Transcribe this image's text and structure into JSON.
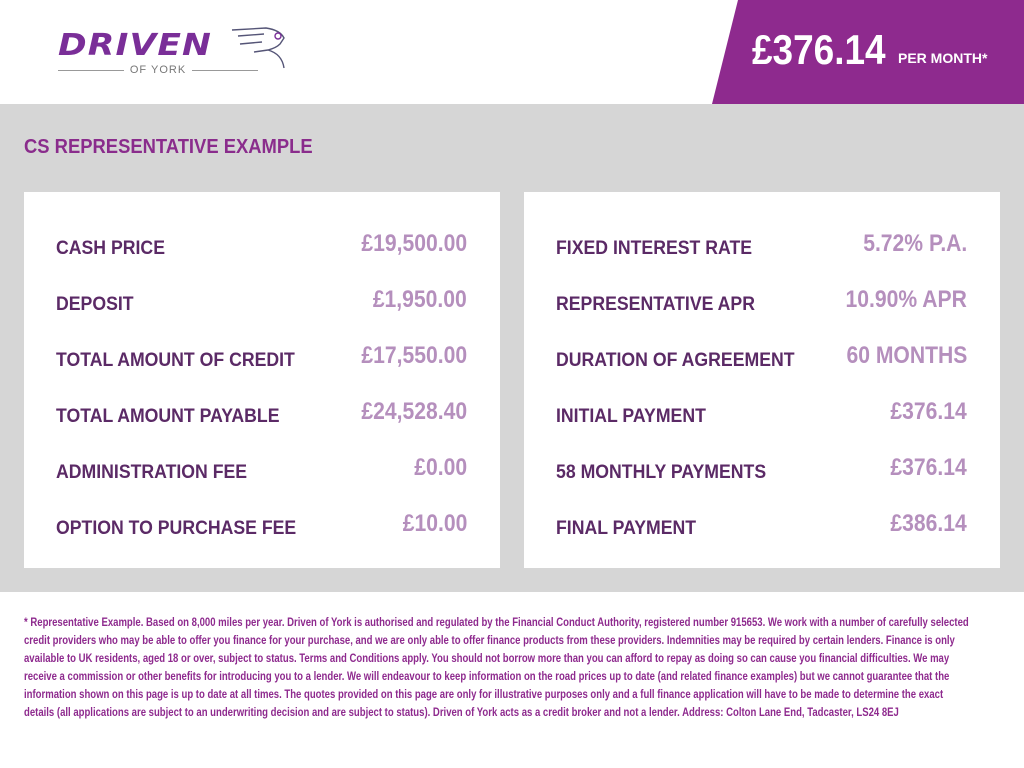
{
  "brand": {
    "logo_word": "DRIVEN",
    "logo_sub": "OF YORK",
    "accent": "#8e2a8e"
  },
  "header": {
    "price": "£376.14",
    "price_unit": "PER MONTH*"
  },
  "section": {
    "title": "CS REPRESENTATIVE EXAMPLE"
  },
  "left_card": [
    {
      "label": "CASH PRICE",
      "value": "£19,500.00"
    },
    {
      "label": "DEPOSIT",
      "value": "£1,950.00"
    },
    {
      "label": "TOTAL AMOUNT OF CREDIT",
      "value": "£17,550.00"
    },
    {
      "label": "TOTAL AMOUNT PAYABLE",
      "value": "£24,528.40"
    },
    {
      "label": "ADMINISTRATION FEE",
      "value": "£0.00"
    },
    {
      "label": "OPTION TO PURCHASE FEE",
      "value": "£10.00"
    }
  ],
  "right_card": [
    {
      "label": "FIXED INTEREST RATE",
      "value": "5.72% P.A."
    },
    {
      "label": "REPRESENTATIVE APR",
      "value": "10.90% APR"
    },
    {
      "label": "DURATION OF AGREEMENT",
      "value": "60 MONTHS"
    },
    {
      "label": "INITIAL PAYMENT",
      "value": "£376.14"
    },
    {
      "label": "58 MONTHLY PAYMENTS",
      "value": "£376.14"
    },
    {
      "label": "FINAL PAYMENT",
      "value": "£386.14"
    }
  ],
  "footer": {
    "lines": [
      "* Representative Example. Based on 8,000 miles per year. Driven of York is authorised and regulated by the Financial Conduct Authority, registered number 915653. We work with a number of carefully selected",
      "credit providers who may be able to offer you finance for your purchase, and we are only able to offer finance products from these providers. Indemnities may be required by certain lenders. Finance is only",
      "available to UK residents, aged 18 or over, subject to status. Terms and Conditions apply. You should not borrow more than you can afford to repay as doing so can cause you financial difficulties. We may",
      "receive a commission or other benefits for introducing you to a lender. We will endeavour to keep information on the road prices up to date (and related finance examples) but we cannot guarantee that the",
      "information shown on this page is up to date at all times. The quotes provided on this page are only for illustrative purposes only and a full finance application will have to be made to determine the exact",
      "details (all applications are subject to an underwriting decision and are subject to status). Driven of York acts as a credit broker and not a lender. Address: Colton Lane End, Tadcaster, LS24 8EJ"
    ]
  }
}
